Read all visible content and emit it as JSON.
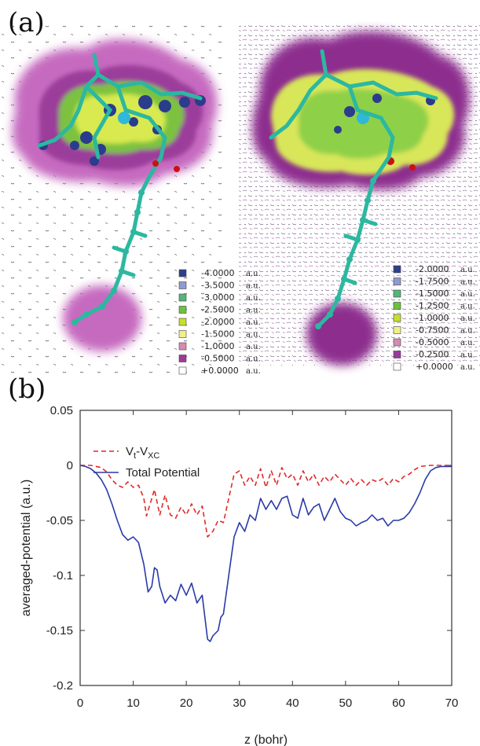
{
  "panel_a": {
    "label": "(a)",
    "left_legend": [
      {
        "value": "-4.0000",
        "unit": "a.u.",
        "color": "#2e3f8f"
      },
      {
        "value": "-3.5000",
        "unit": "a.u.",
        "color": "#8f9bd0"
      },
      {
        "value": "-3.0000",
        "unit": "a.u.",
        "color": "#57b57a"
      },
      {
        "value": "-2.5000",
        "unit": "a.u.",
        "color": "#6cc23a"
      },
      {
        "value": "-2.0000",
        "unit": "a.u.",
        "color": "#c6e02a"
      },
      {
        "value": "-1.5000",
        "unit": "a.u.",
        "color": "#f0f08a"
      },
      {
        "value": "-1.0000",
        "unit": "a.u.",
        "color": "#d88ab0"
      },
      {
        "value": "-0.5000",
        "unit": "a.u.",
        "color": "#9c3a9a"
      },
      {
        "value": "+0.0000",
        "unit": "a.u.",
        "color": "#ffffff"
      }
    ],
    "right_legend": [
      {
        "value": "-2.0000",
        "unit": "a.u.",
        "color": "#2e3f8f"
      },
      {
        "value": "-1.7500",
        "unit": "a.u.",
        "color": "#8f9bd0"
      },
      {
        "value": "-1.5000",
        "unit": "a.u.",
        "color": "#57b57a"
      },
      {
        "value": "-1.2500",
        "unit": "a.u.",
        "color": "#6cc23a"
      },
      {
        "value": "-1.0000",
        "unit": "a.u.",
        "color": "#c6e02a"
      },
      {
        "value": "-0.7500",
        "unit": "a.u.",
        "color": "#f0f08a"
      },
      {
        "value": "-0.5000",
        "unit": "a.u.",
        "color": "#d88ab0"
      },
      {
        "value": "-0.2500",
        "unit": "a.u.",
        "color": "#9c3a9a"
      },
      {
        "value": "+0.0000",
        "unit": "a.u.",
        "color": "#ffffff"
      }
    ]
  },
  "panel_b": {
    "label": "(b)"
  },
  "chart_data": {
    "type": "line",
    "xlabel": "z (bohr)",
    "ylabel": "averaged-potential (a.u.)",
    "xlim": [
      0,
      70
    ],
    "ylim": [
      -0.2,
      0.05
    ],
    "xticks": [
      0,
      10,
      20,
      30,
      40,
      50,
      60,
      70
    ],
    "xtick_labels": [
      "0",
      "10",
      "20",
      "30",
      "40",
      "50",
      "60",
      "70"
    ],
    "yticks": [
      0.05,
      0,
      -0.05,
      -0.1,
      -0.15,
      -0.2
    ],
    "ytick_labels": [
      "0.05",
      "0",
      "-0.05",
      "-0.1",
      "-0.15",
      "-0.2"
    ],
    "grid": false,
    "legend_position": "top-left",
    "series": [
      {
        "name_main": "V",
        "name_sub1": "t",
        "name_mid": "-V",
        "name_sub2": "XC",
        "style": "dashed",
        "color": "#e02a2a",
        "points": [
          [
            0,
            0
          ],
          [
            2,
            0
          ],
          [
            4,
            -0.002
          ],
          [
            5,
            -0.006
          ],
          [
            6,
            -0.013
          ],
          [
            7,
            -0.018
          ],
          [
            8,
            -0.02
          ],
          [
            9,
            -0.015
          ],
          [
            10,
            -0.02
          ],
          [
            11,
            -0.018
          ],
          [
            12,
            -0.03
          ],
          [
            12.5,
            -0.046
          ],
          [
            13,
            -0.038
          ],
          [
            14,
            -0.022
          ],
          [
            15,
            -0.045
          ],
          [
            16,
            -0.027
          ],
          [
            17,
            -0.045
          ],
          [
            18,
            -0.048
          ],
          [
            19,
            -0.038
          ],
          [
            20,
            -0.045
          ],
          [
            21,
            -0.035
          ],
          [
            22,
            -0.045
          ],
          [
            23,
            -0.037
          ],
          [
            24,
            -0.065
          ],
          [
            25,
            -0.06
          ],
          [
            26,
            -0.05
          ],
          [
            27,
            -0.052
          ],
          [
            28,
            -0.03
          ],
          [
            29,
            -0.008
          ],
          [
            30,
            -0.005
          ],
          [
            31,
            -0.018
          ],
          [
            32,
            -0.01
          ],
          [
            33,
            -0.018
          ],
          [
            34,
            -0.003
          ],
          [
            35,
            -0.02
          ],
          [
            36,
            -0.005
          ],
          [
            37,
            -0.018
          ],
          [
            38,
            -0.002
          ],
          [
            39,
            -0.012
          ],
          [
            40,
            -0.008
          ],
          [
            41,
            -0.018
          ],
          [
            42,
            -0.005
          ],
          [
            43,
            -0.015
          ],
          [
            44,
            -0.008
          ],
          [
            45,
            -0.018
          ],
          [
            46,
            -0.01
          ],
          [
            47,
            -0.015
          ],
          [
            48,
            -0.008
          ],
          [
            49,
            -0.013
          ],
          [
            50,
            -0.018
          ],
          [
            51,
            -0.012
          ],
          [
            52,
            -0.018
          ],
          [
            53,
            -0.013
          ],
          [
            54,
            -0.018
          ],
          [
            55,
            -0.013
          ],
          [
            56,
            -0.015
          ],
          [
            57,
            -0.012
          ],
          [
            58,
            -0.018
          ],
          [
            59,
            -0.012
          ],
          [
            60,
            -0.015
          ],
          [
            61,
            -0.01
          ],
          [
            62,
            -0.008
          ],
          [
            63,
            -0.004
          ],
          [
            64,
            -0.001
          ],
          [
            66,
            0
          ],
          [
            70,
            0
          ]
        ]
      },
      {
        "name": "Total Potential",
        "style": "solid",
        "color": "#2a3aa8",
        "points": [
          [
            0,
            0
          ],
          [
            1,
            -0.001
          ],
          [
            2,
            -0.003
          ],
          [
            3,
            -0.007
          ],
          [
            4,
            -0.013
          ],
          [
            5,
            -0.022
          ],
          [
            6,
            -0.035
          ],
          [
            7,
            -0.05
          ],
          [
            8,
            -0.063
          ],
          [
            9,
            -0.068
          ],
          [
            10,
            -0.065
          ],
          [
            11,
            -0.07
          ],
          [
            12,
            -0.09
          ],
          [
            12.8,
            -0.115
          ],
          [
            13.5,
            -0.11
          ],
          [
            14,
            -0.093
          ],
          [
            14.5,
            -0.095
          ],
          [
            15,
            -0.11
          ],
          [
            16,
            -0.125
          ],
          [
            17,
            -0.118
          ],
          [
            18,
            -0.123
          ],
          [
            19,
            -0.108
          ],
          [
            20,
            -0.118
          ],
          [
            21,
            -0.107
          ],
          [
            22,
            -0.125
          ],
          [
            23,
            -0.118
          ],
          [
            24,
            -0.158
          ],
          [
            24.5,
            -0.16
          ],
          [
            25,
            -0.155
          ],
          [
            26,
            -0.15
          ],
          [
            26.5,
            -0.138
          ],
          [
            27,
            -0.135
          ],
          [
            28,
            -0.1
          ],
          [
            29,
            -0.065
          ],
          [
            30,
            -0.052
          ],
          [
            31,
            -0.06
          ],
          [
            32,
            -0.045
          ],
          [
            33,
            -0.05
          ],
          [
            34,
            -0.03
          ],
          [
            35,
            -0.04
          ],
          [
            36,
            -0.032
          ],
          [
            37,
            -0.04
          ],
          [
            38,
            -0.03
          ],
          [
            39,
            -0.028
          ],
          [
            40,
            -0.045
          ],
          [
            41,
            -0.048
          ],
          [
            42,
            -0.03
          ],
          [
            43,
            -0.045
          ],
          [
            44,
            -0.038
          ],
          [
            45,
            -0.035
          ],
          [
            46,
            -0.05
          ],
          [
            47,
            -0.04
          ],
          [
            48,
            -0.03
          ],
          [
            49,
            -0.042
          ],
          [
            50,
            -0.048
          ],
          [
            51,
            -0.05
          ],
          [
            52,
            -0.055
          ],
          [
            53,
            -0.052
          ],
          [
            54,
            -0.05
          ],
          [
            55,
            -0.045
          ],
          [
            56,
            -0.05
          ],
          [
            57,
            -0.048
          ],
          [
            58,
            -0.055
          ],
          [
            59,
            -0.05
          ],
          [
            60,
            -0.05
          ],
          [
            61,
            -0.048
          ],
          [
            62,
            -0.043
          ],
          [
            63,
            -0.035
          ],
          [
            64,
            -0.025
          ],
          [
            65,
            -0.013
          ],
          [
            66,
            -0.005
          ],
          [
            67,
            -0.002
          ],
          [
            68,
            -0.001
          ],
          [
            70,
            -0.001
          ]
        ]
      },
      {
        "name": "Total Potential"
      }
    ]
  }
}
